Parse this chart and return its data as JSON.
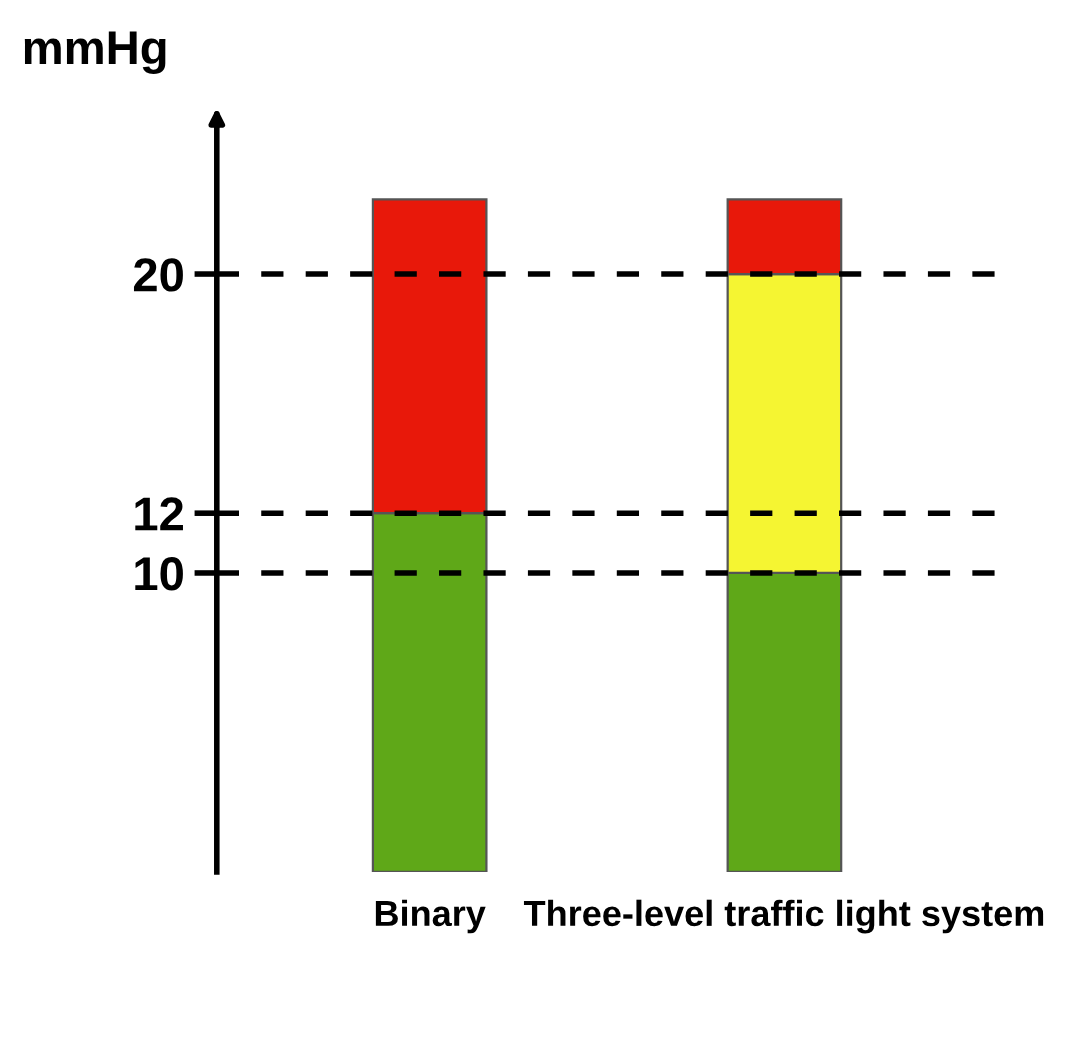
{
  "chart_data": {
    "type": "bar",
    "stacked": true,
    "ylabel": "mmHg",
    "categories": [
      "Binary",
      "Three-level traffic light system"
    ],
    "series": [
      {
        "color": "#5fa818",
        "values": [
          12,
          10
        ]
      },
      {
        "color": "#f5f532",
        "values": [
          null,
          10
        ]
      },
      {
        "color": "#e8180a",
        "values": [
          10.5,
          2.5
        ]
      }
    ],
    "ylim": [
      0,
      25
    ],
    "yticks": [
      10,
      12,
      20
    ],
    "grid": false,
    "legend": false,
    "ref_lines": [
      {
        "axis": "y",
        "value": 12,
        "line_style": "dashed",
        "color": "#000000"
      },
      {
        "axis": "y",
        "value": 20,
        "line_style": "dashed",
        "color": "#000000"
      },
      {
        "axis": "y",
        "value": 10,
        "line_style": "dashed",
        "color": "#000000"
      }
    ]
  }
}
